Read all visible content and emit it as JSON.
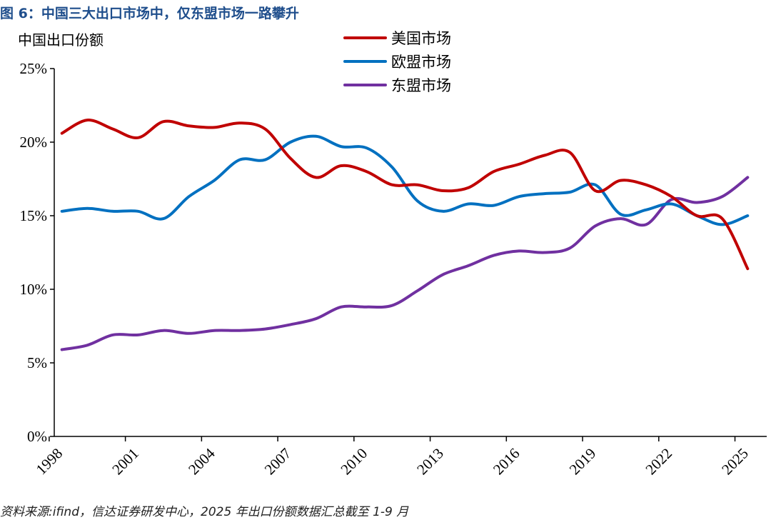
{
  "figure": {
    "title": "图 6：中国三大出口市场中，仅东盟市场一路攀升",
    "source": "资料来源:ifind，信达证券研发中心，2025 年出口份额数据汇总截至 1-9 月"
  },
  "chart_data": {
    "type": "line",
    "ylabel": "中国出口份额",
    "ylim": [
      0,
      25
    ],
    "yticks": [
      "0%",
      "5%",
      "10%",
      "15%",
      "20%",
      "25%"
    ],
    "xlim": [
      1998,
      2025
    ],
    "xticks": [
      "1998",
      "2001",
      "2004",
      "2007",
      "2010",
      "2013",
      "2016",
      "2019",
      "2022",
      "2025"
    ],
    "grid": false,
    "legend_position": "top-center",
    "x": [
      1998,
      1999,
      2000,
      2001,
      2002,
      2003,
      2004,
      2005,
      2006,
      2007,
      2008,
      2009,
      2010,
      2011,
      2012,
      2013,
      2014,
      2015,
      2016,
      2017,
      2018,
      2019,
      2020,
      2021,
      2022,
      2023,
      2024,
      2025
    ],
    "series": [
      {
        "name": "美国市场",
        "color": "#c00000",
        "values": [
          20.6,
          21.5,
          20.9,
          20.3,
          21.4,
          21.1,
          21.0,
          21.3,
          20.9,
          18.9,
          17.6,
          18.4,
          18.0,
          17.1,
          17.1,
          16.7,
          16.9,
          18.0,
          18.5,
          19.1,
          19.3,
          16.7,
          17.4,
          17.1,
          16.3,
          15.0,
          14.8,
          11.4
        ]
      },
      {
        "name": "欧盟市场",
        "color": "#0070c0",
        "values": [
          15.3,
          15.5,
          15.3,
          15.3,
          14.8,
          16.3,
          17.4,
          18.8,
          18.8,
          20.0,
          20.4,
          19.7,
          19.6,
          18.3,
          16.0,
          15.3,
          15.8,
          15.7,
          16.3,
          16.5,
          16.6,
          17.1,
          15.1,
          15.4,
          15.8,
          15.0,
          14.4,
          15.0
        ]
      },
      {
        "name": "东盟市场",
        "color": "#7030a0",
        "values": [
          5.9,
          6.2,
          6.9,
          6.9,
          7.2,
          7.0,
          7.2,
          7.2,
          7.3,
          7.6,
          8.0,
          8.8,
          8.8,
          8.9,
          9.9,
          11.0,
          11.6,
          12.3,
          12.6,
          12.5,
          12.8,
          14.3,
          14.8,
          14.4,
          16.1,
          15.9,
          16.3,
          17.6
        ]
      }
    ]
  }
}
